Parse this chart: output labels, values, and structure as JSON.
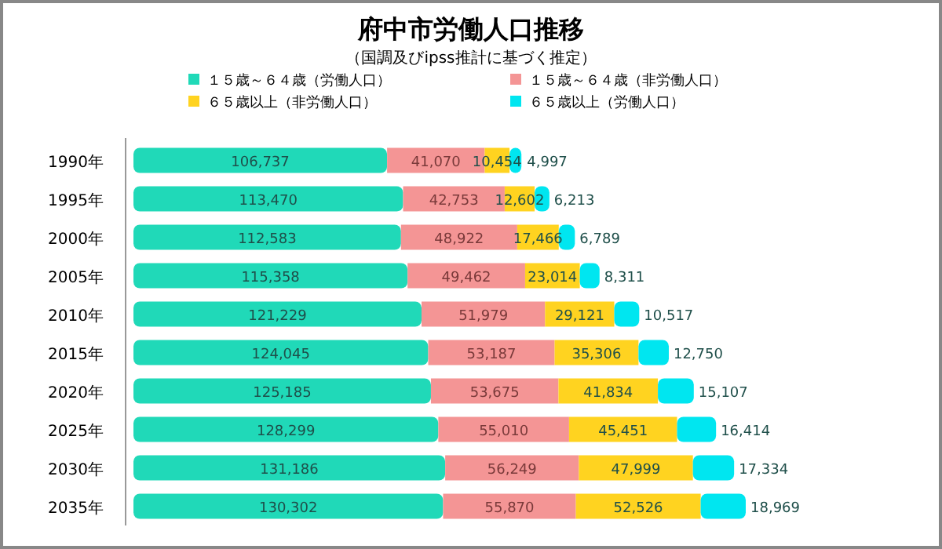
{
  "chart_data": {
    "type": "bar",
    "orientation": "horizontal",
    "stacked": true,
    "title": "府中市労働人口推移",
    "subtitle": "（国調及びipss推計に基づく推定）",
    "categories": [
      "1990年",
      "1995年",
      "2000年",
      "2005年",
      "2010年",
      "2015年",
      "2020年",
      "2025年",
      "2030年",
      "2035年"
    ],
    "series": [
      {
        "name": "１５歳～６４歳（労働人口）",
        "color": "#20d9b8",
        "values": [
          106737,
          113470,
          112583,
          115358,
          121229,
          124045,
          125185,
          128299,
          131186,
          130302
        ],
        "value_labels": [
          "106,737",
          "113,470",
          "112,583",
          "115,358",
          "121,229",
          "124,045",
          "125,185",
          "128,299",
          "131,186",
          "130,302"
        ]
      },
      {
        "name": "１５歳～６４歳（非労働人口）",
        "color": "#f49595",
        "values": [
          41070,
          42753,
          48922,
          49462,
          51979,
          53187,
          53675,
          55010,
          56249,
          55870
        ],
        "value_labels": [
          "41,070",
          "42,753",
          "48,922",
          "49,462",
          "51,979",
          "53,187",
          "53,675",
          "55,010",
          "56,249",
          "55,870"
        ]
      },
      {
        "name": "６５歳以上（非労働人口）",
        "color": "#ffd320",
        "values": [
          10454,
          12602,
          17466,
          23014,
          29121,
          35306,
          41834,
          45451,
          47999,
          52526
        ],
        "value_labels": [
          "10,454",
          "12,602",
          "17,466",
          "23,014",
          "29,121",
          "35,306",
          "41,834",
          "45,451",
          "47,999",
          "52,526"
        ]
      },
      {
        "name": "６５歳以上（労働人口）",
        "color": "#00e6f0",
        "values": [
          4997,
          6213,
          6789,
          8311,
          10517,
          12750,
          15107,
          16414,
          17334,
          18969
        ],
        "value_labels": [
          "4,997",
          "6,213",
          "6,789",
          "8,311",
          "10,517",
          "12,750",
          "15,107",
          "16,414",
          "17,334",
          "18,969"
        ]
      }
    ],
    "legend": "top"
  }
}
